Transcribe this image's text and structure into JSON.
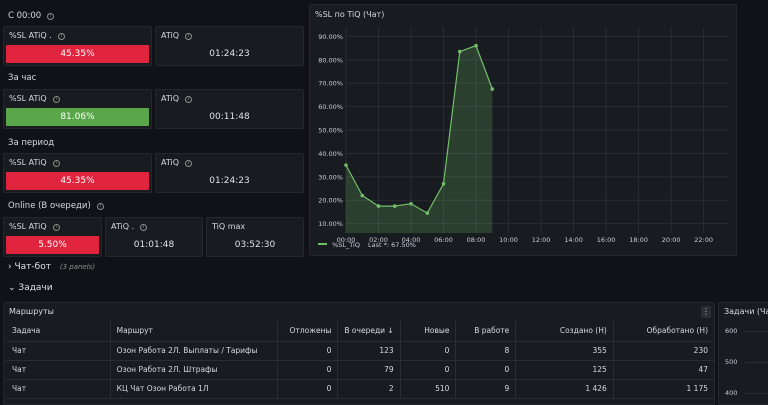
{
  "groups": {
    "c0000": "С 00:00",
    "hour": "За час",
    "period": "За период",
    "online": "Online (В очереди)"
  },
  "stats": {
    "sl_1": {
      "title": "%SL ATiQ .",
      "value": "45.35%"
    },
    "atiq_1": {
      "title": "ATiQ",
      "value": "01:24:23"
    },
    "sl_2": {
      "title": "%SL ATiQ",
      "value": "81.06%"
    },
    "atiq_2": {
      "title": "ATiQ",
      "value": "00:11:48"
    },
    "sl_3": {
      "title": "%SL ATiQ",
      "value": "45.35%"
    },
    "atiq_3": {
      "title": "ATiQ",
      "value": "01:24:23"
    },
    "sl_4": {
      "title": "%SL ATiQ",
      "value": "5.50%"
    },
    "atiq_4": {
      "title": "ATiQ .",
      "value": "01:01:48"
    },
    "tiq_max": {
      "title": "TiQ max",
      "value": "03:52:30"
    }
  },
  "colors": {
    "red": "#e0243e",
    "green": "#5aa64b",
    "line": "#73bf69"
  },
  "chart_panel": {
    "title": "%SL по TiQ (Чат)",
    "legend_name": "%SL_TiQ",
    "legend_last": "Last *: 67.50%"
  },
  "chart_data": {
    "type": "line",
    "title": "%SL по TiQ (Чат)",
    "x": [
      "00:00",
      "01:00",
      "02:00",
      "03:00",
      "04:00",
      "05:00",
      "06:00",
      "07:00",
      "08:00",
      "09:00"
    ],
    "x_hours": [
      0,
      1,
      2,
      3,
      4,
      5,
      6,
      7,
      8,
      9
    ],
    "series": [
      {
        "name": "%SL_TiQ",
        "values": [
          35,
          22,
          17.5,
          17.5,
          18.5,
          14.5,
          27,
          83.5,
          86,
          67.5
        ]
      }
    ],
    "x_ticks": [
      "00:00",
      "02:00",
      "04:00",
      "06:00",
      "08:00",
      "10:00",
      "12:00",
      "14:00",
      "16:00",
      "18:00",
      "20:00",
      "22:00"
    ],
    "y_ticks": [
      "10.00%",
      "20.00%",
      "30.00%",
      "40.00%",
      "50.00%",
      "60.00%",
      "70.00%",
      "80.00%",
      "90.00%"
    ],
    "xlim": [
      0,
      23.5
    ],
    "ylim": [
      6,
      94
    ]
  },
  "sections": {
    "chatbot": {
      "label": "Чат-бот",
      "note": "(3 panels)"
    },
    "tasks": {
      "label": "Задачи"
    }
  },
  "routes_panel": {
    "title": "Маршруты",
    "headers": [
      "Задача",
      "Маршрут",
      "Отложены",
      "В очереди ↓",
      "Новые",
      "В работе",
      "Создано (H)",
      "Обработано (H)"
    ],
    "rows": [
      [
        "Чат",
        "Озон Работа 2Л. Выплаты / Тарифы",
        "0",
        "123",
        "0",
        "8",
        "355",
        "230"
      ],
      [
        "Чат",
        "Озон Работа 2Л. Штрафы",
        "0",
        "79",
        "0",
        "0",
        "125",
        "47"
      ],
      [
        "Чат",
        "КЦ Чат Озон Работа 1Л",
        "0",
        "2",
        "510",
        "9",
        "1 426",
        "1 175"
      ]
    ]
  },
  "tasks_panel": {
    "title": "Задачи (Чат",
    "y_ticks": [
      "600",
      "500",
      "400"
    ]
  }
}
